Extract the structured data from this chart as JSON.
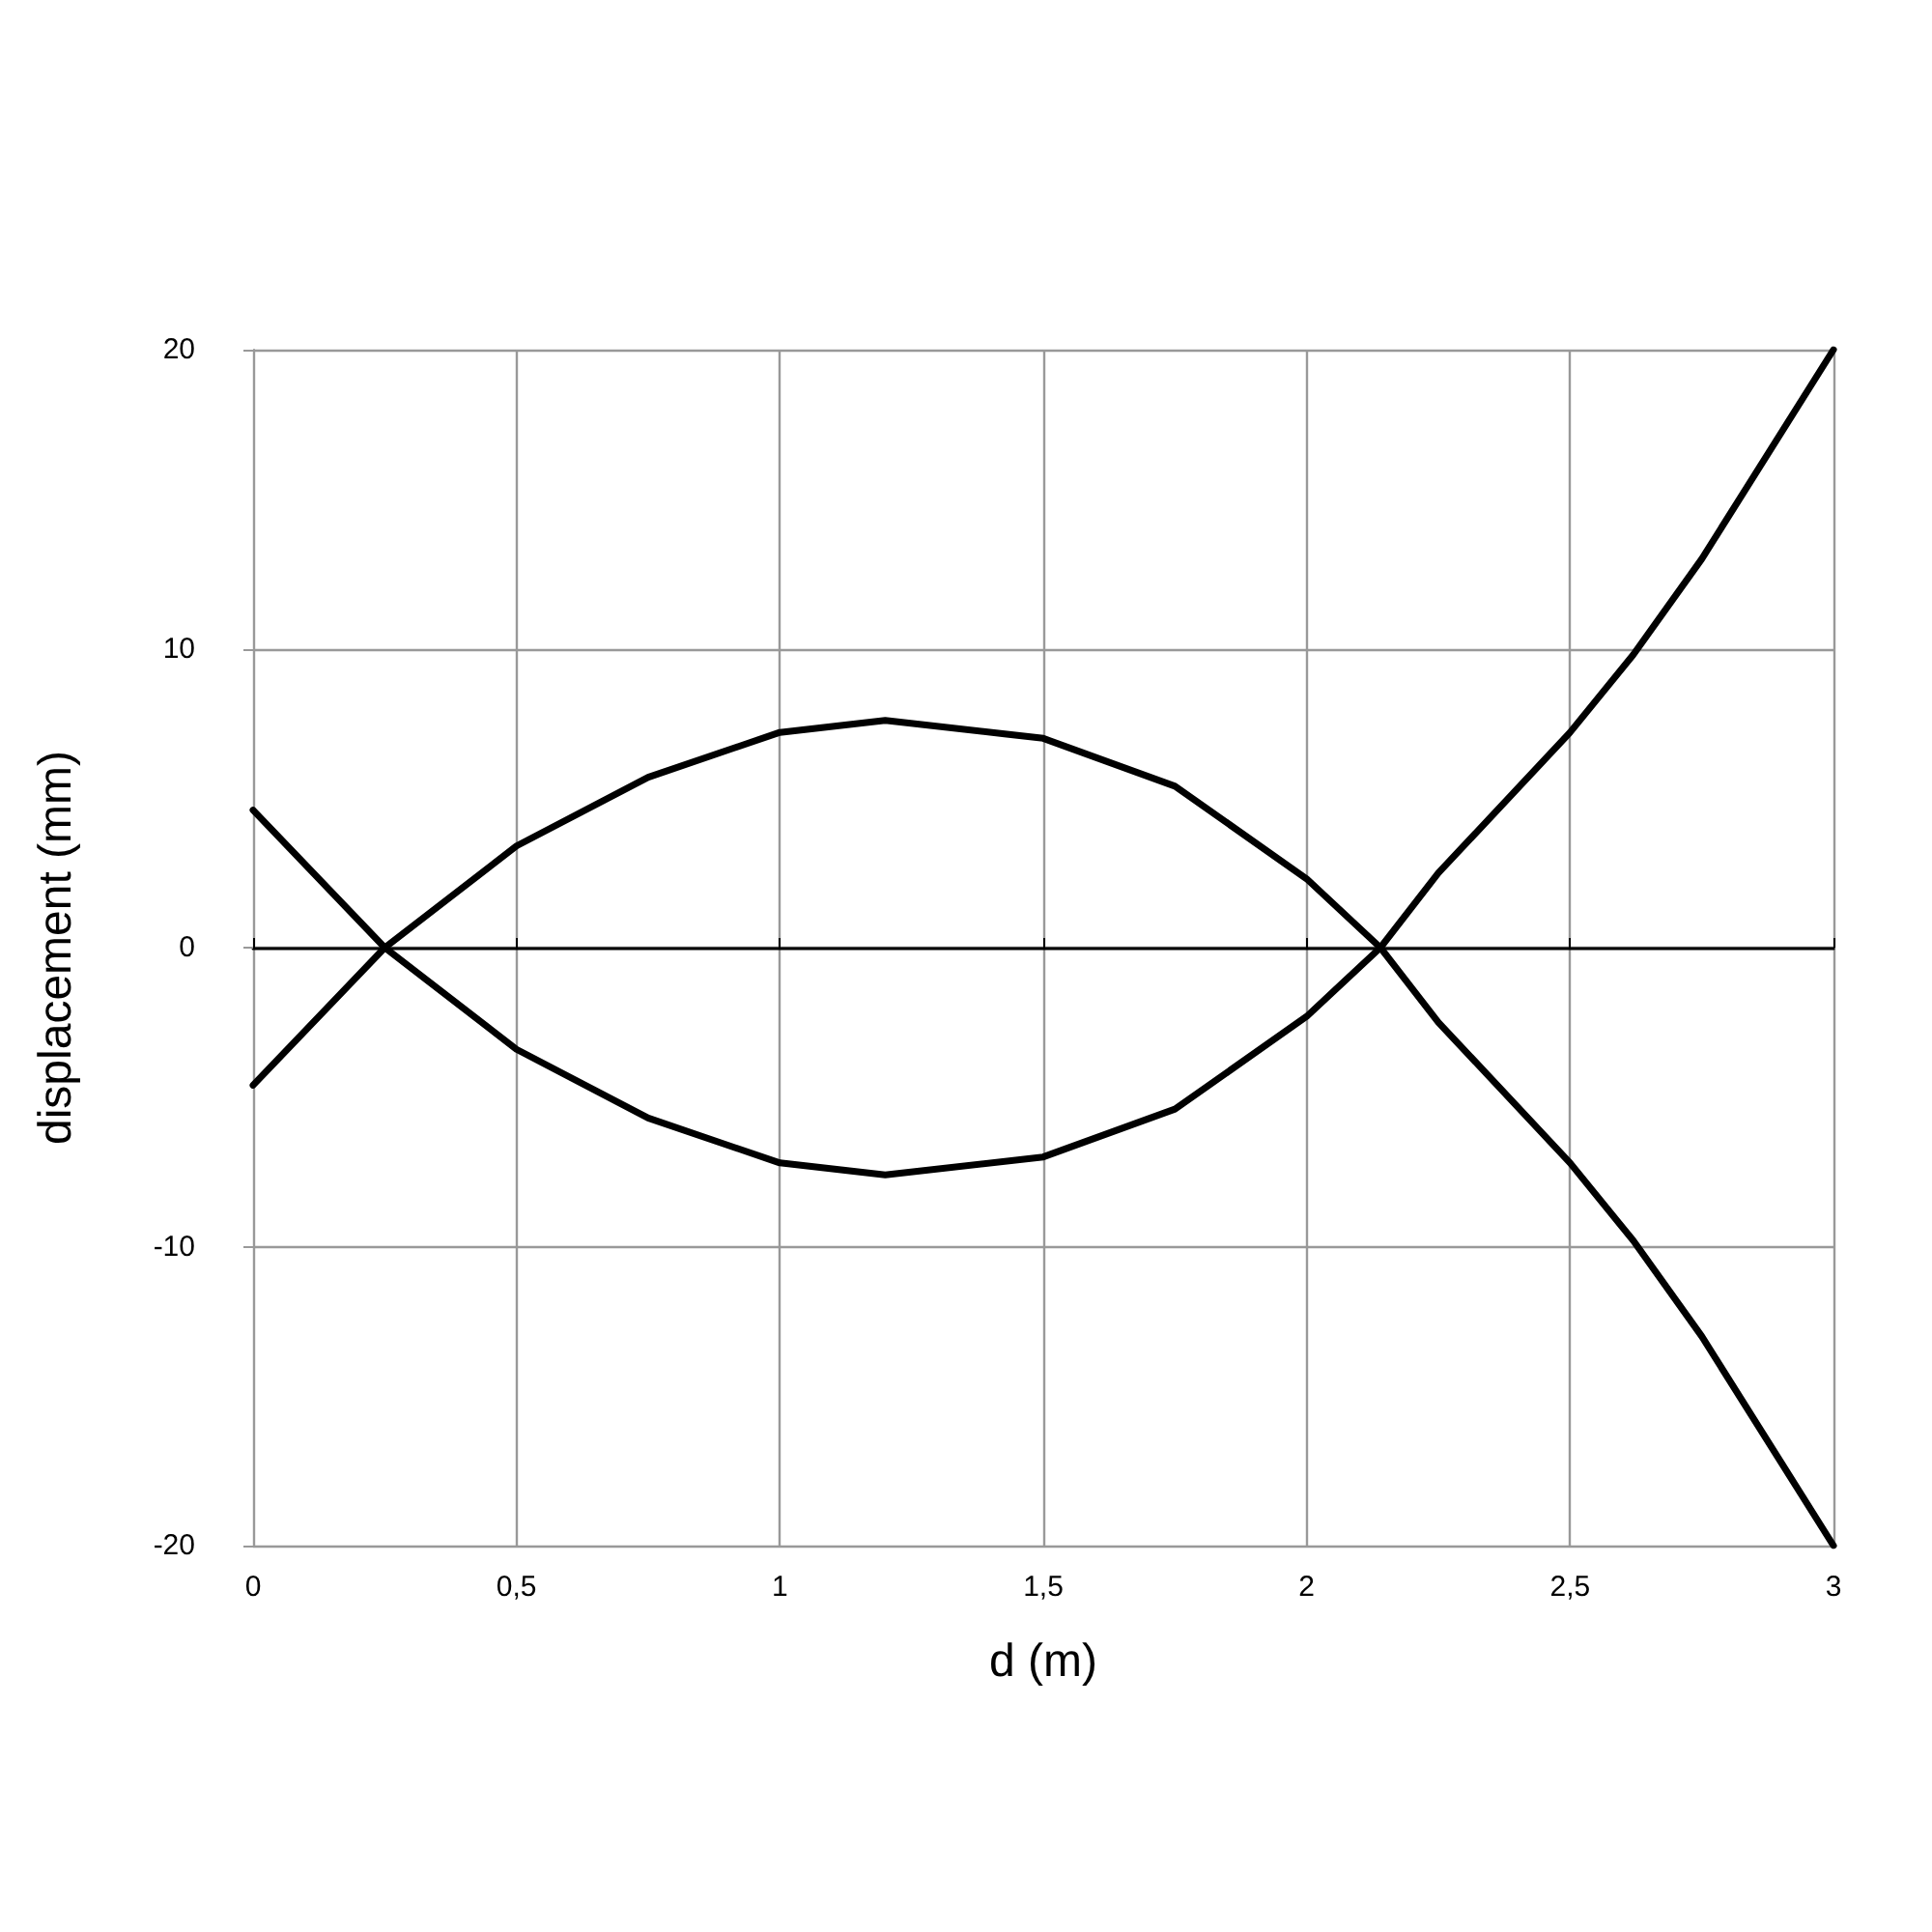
{
  "chart_data": {
    "type": "line",
    "xlabel": "d (m)",
    "ylabel": "displacement (mm)",
    "x": [
      0,
      0.25,
      0.5,
      0.75,
      1,
      1.2,
      1.5,
      1.75,
      2,
      2.14,
      2.25,
      2.5,
      2.62,
      2.75,
      3
    ],
    "series": [
      {
        "color": "#000000",
        "values": [
          -4.6,
          0,
          3.4,
          5.7,
          7.2,
          7.6,
          7,
          5.4,
          2.3,
          0,
          -2.5,
          -7.2,
          -9.8,
          -13,
          -20
        ]
      },
      {
        "color": "#000000",
        "values": [
          4.6,
          0,
          -3.4,
          -5.7,
          -7.2,
          -7.6,
          -7,
          -5.4,
          -2.3,
          0,
          2.5,
          7.2,
          9.8,
          13,
          20
        ]
      }
    ],
    "xlim": [
      0,
      3
    ],
    "xticks": [
      0,
      {
        "value": 0.5,
        "label": "0,5"
      },
      1,
      {
        "value": 1.5,
        "label": "1,5"
      },
      2,
      {
        "value": 2.5,
        "label": "2,5"
      },
      3
    ],
    "ylim": [
      -20,
      20
    ],
    "yticks": [
      -20,
      -10,
      0,
      10,
      20
    ],
    "grid": true,
    "marker": "none",
    "line_style": "solid"
  }
}
